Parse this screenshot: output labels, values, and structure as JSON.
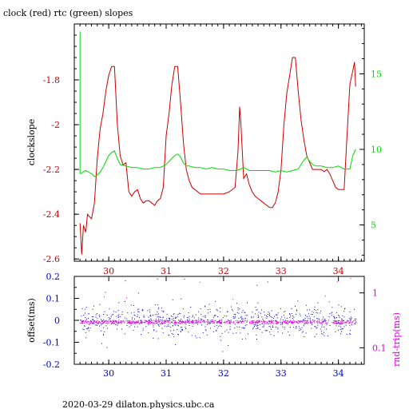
{
  "title": "clock (red) rtc (green) slopes",
  "footer": "2020-03-29  dilaton.physics.ubc.ca",
  "colors": {
    "clock": "#cc0000",
    "rtc": "#00dd00",
    "offset": "#0000cc",
    "rndtrip": "#dd00dd",
    "axis": "#000000"
  },
  "chart_data": [
    {
      "type": "line",
      "title": "clock (red) rtc (green) slopes",
      "ylabel": "clockslope",
      "xlim": [
        29.4,
        34.45
      ],
      "xticks": [
        "30",
        "31",
        "32",
        "33",
        "34"
      ],
      "ylim_left": [
        -2.61,
        -1.55
      ],
      "yticks_left": [
        "-1.8",
        "-2",
        "-2.2",
        "-2.4",
        "-2.6"
      ],
      "ylim_right": [
        2.6,
        18.3
      ],
      "yticks_right": [
        "15",
        "10",
        "5"
      ],
      "grid": false,
      "series": [
        {
          "name": "clock",
          "axis": "left",
          "x": [
            29.5,
            29.53,
            29.56,
            29.6,
            29.63,
            29.66,
            29.7,
            29.75,
            29.8,
            29.85,
            29.9,
            29.95,
            30.0,
            30.05,
            30.1,
            30.15,
            30.2,
            30.25,
            30.3,
            30.35,
            30.4,
            30.45,
            30.5,
            30.55,
            30.6,
            30.65,
            30.7,
            30.75,
            30.8,
            30.85,
            30.9,
            30.95,
            31.0,
            31.05,
            31.1,
            31.15,
            31.2,
            31.25,
            31.3,
            31.35,
            31.4,
            31.45,
            31.5,
            31.55,
            31.6,
            31.65,
            31.7,
            31.75,
            31.8,
            31.9,
            32.0,
            32.1,
            32.2,
            32.25,
            32.28,
            32.3,
            32.35,
            32.4,
            32.45,
            32.5,
            32.55,
            32.6,
            32.65,
            32.7,
            32.75,
            32.8,
            32.85,
            32.9,
            32.95,
            33.0,
            33.05,
            33.1,
            33.15,
            33.2,
            33.25,
            33.3,
            33.35,
            33.4,
            33.45,
            33.5,
            33.55,
            33.6,
            33.65,
            33.7,
            33.75,
            33.8,
            33.85,
            33.9,
            33.95,
            34.0,
            34.05,
            34.1,
            34.15,
            34.2,
            34.25,
            34.28,
            34.3
          ],
          "y": [
            -2.44,
            -2.58,
            -2.45,
            -2.48,
            -2.4,
            -2.41,
            -2.42,
            -2.35,
            -2.15,
            -2.02,
            -1.95,
            -1.85,
            -1.78,
            -1.74,
            -1.74,
            -2.0,
            -2.14,
            -2.18,
            -2.17,
            -2.3,
            -2.32,
            -2.3,
            -2.29,
            -2.33,
            -2.35,
            -2.34,
            -2.34,
            -2.35,
            -2.36,
            -2.34,
            -2.33,
            -2.28,
            -2.05,
            -1.95,
            -1.82,
            -1.74,
            -1.74,
            -1.9,
            -2.08,
            -2.2,
            -2.25,
            -2.28,
            -2.29,
            -2.3,
            -2.31,
            -2.31,
            -2.31,
            -2.31,
            -2.31,
            -2.31,
            -2.31,
            -2.3,
            -2.28,
            -2.12,
            -1.92,
            -1.99,
            -2.24,
            -2.22,
            -2.27,
            -2.3,
            -2.32,
            -2.33,
            -2.34,
            -2.35,
            -2.36,
            -2.37,
            -2.37,
            -2.35,
            -2.3,
            -2.2,
            -2.0,
            -1.86,
            -1.78,
            -1.7,
            -1.7,
            -1.85,
            -1.98,
            -2.07,
            -2.14,
            -2.17,
            -2.2,
            -2.2,
            -2.2,
            -2.2,
            -2.21,
            -2.2,
            -2.22,
            -2.25,
            -2.28,
            -2.29,
            -2.29,
            -2.29,
            -2.05,
            -1.82,
            -1.76,
            -1.72,
            -1.83
          ]
        },
        {
          "name": "rtc",
          "axis": "right",
          "x": [
            29.5,
            29.52,
            29.55,
            29.6,
            29.65,
            29.7,
            29.75,
            29.8,
            29.85,
            29.9,
            29.95,
            30.0,
            30.05,
            30.1,
            30.15,
            30.2,
            30.3,
            30.4,
            30.5,
            30.6,
            30.7,
            30.8,
            30.9,
            30.95,
            31.0,
            31.05,
            31.1,
            31.15,
            31.2,
            31.25,
            31.3,
            31.35,
            31.4,
            31.5,
            31.6,
            31.7,
            31.8,
            31.9,
            32.0,
            32.1,
            32.2,
            32.3,
            32.35,
            32.4,
            32.45,
            32.5,
            32.6,
            32.7,
            32.8,
            32.9,
            33.0,
            33.1,
            33.2,
            33.3,
            33.35,
            33.4,
            33.45,
            33.5,
            33.55,
            33.6,
            33.7,
            33.8,
            33.9,
            34.0,
            34.1,
            34.2,
            34.25,
            34.3
          ],
          "y": [
            8.4,
            8.4,
            8.5,
            8.6,
            8.5,
            8.4,
            8.2,
            8.3,
            8.5,
            8.8,
            9.2,
            9.6,
            9.8,
            9.9,
            9.4,
            9.0,
            8.9,
            8.8,
            8.8,
            8.7,
            8.7,
            8.8,
            8.8,
            8.9,
            9.0,
            9.2,
            9.4,
            9.6,
            9.7,
            9.5,
            9.1,
            8.9,
            8.9,
            8.8,
            8.8,
            8.7,
            8.8,
            8.7,
            8.7,
            8.6,
            8.6,
            8.7,
            8.8,
            8.7,
            8.6,
            8.6,
            8.6,
            8.6,
            8.6,
            8.5,
            8.6,
            8.5,
            8.6,
            8.7,
            9.0,
            9.3,
            9.5,
            9.2,
            9.0,
            8.9,
            8.9,
            8.8,
            8.8,
            8.9,
            8.7,
            8.7,
            9.6,
            10.0
          ]
        }
      ]
    },
    {
      "type": "scatter",
      "xlim": [
        29.4,
        34.45
      ],
      "xticks": [
        "30",
        "31",
        "32",
        "33",
        "34"
      ],
      "ylabel_left": "offset(ms)",
      "ylim_left": [
        -0.2,
        0.2
      ],
      "yticks_left": [
        "0.2",
        "0.1",
        "0",
        "-0.1",
        "-0.2"
      ],
      "ylabel_right": "rnd-trip(ms)",
      "ylim_right": [
        0.05,
        2.0
      ],
      "yscale_right": "log",
      "yticks_right": [
        "1",
        "0.1"
      ],
      "series": [
        {
          "name": "offset",
          "axis": "left",
          "center": 0.0,
          "spread": 0.035
        },
        {
          "name": "rnd-trip",
          "axis": "right",
          "center": 0.3,
          "spread": 0.01
        }
      ]
    }
  ]
}
